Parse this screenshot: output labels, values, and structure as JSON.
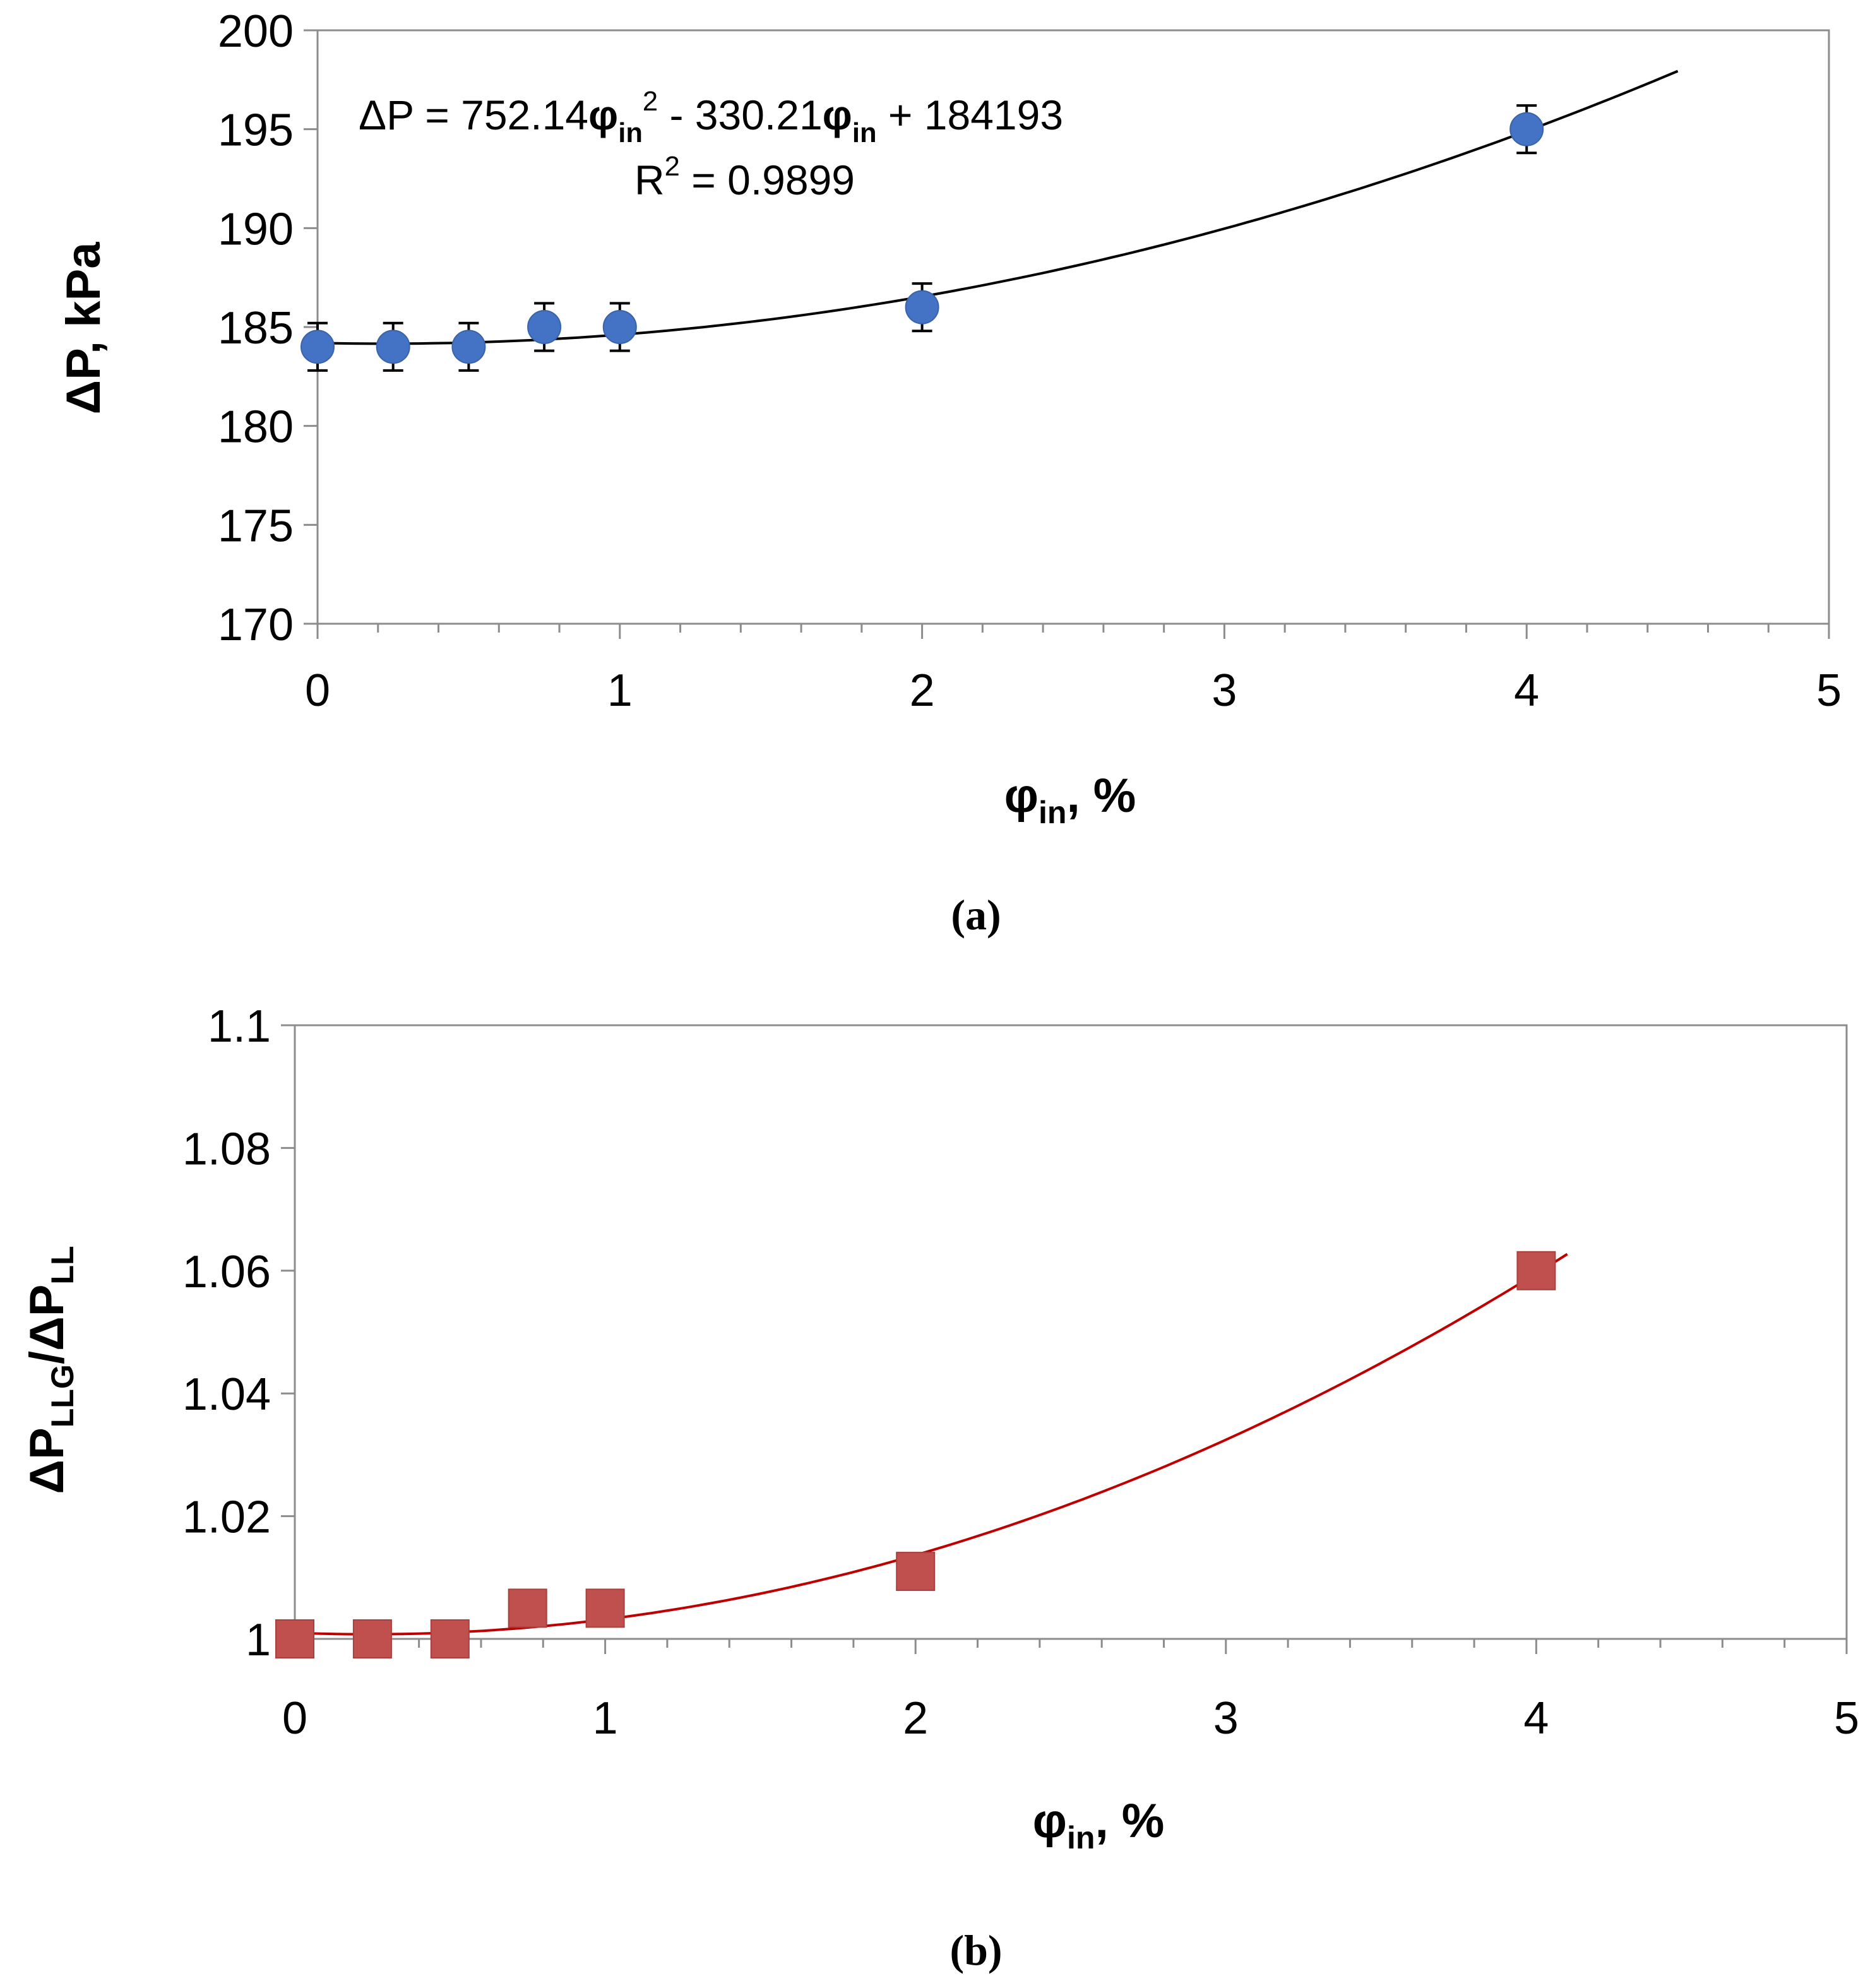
{
  "chart_data": [
    {
      "type": "scatter",
      "caption": "(a)",
      "title": "",
      "xlabel": {
        "main": "φ",
        "sub": "in",
        "tail": ", %"
      },
      "ylabel": "ΔP, kPa",
      "xlim": [
        0,
        5
      ],
      "ylim": [
        170,
        200
      ],
      "x_ticks": [
        "0",
        "1",
        "2",
        "3",
        "4",
        "5"
      ],
      "y_ticks": [
        "170",
        "175",
        "180",
        "185",
        "190",
        "195",
        "200"
      ],
      "grid": false,
      "marker": "circle",
      "color": "#4472c4",
      "error_bar": 1.2,
      "x": [
        0,
        0.25,
        0.5,
        0.75,
        1,
        2,
        4
      ],
      "y": [
        184,
        184,
        184,
        185,
        185,
        186,
        195
      ],
      "trendline": {
        "type": "polynomial",
        "order": 2,
        "x_range": [
          0,
          4.5
        ],
        "color": "#000000"
      },
      "equation": {
        "prefix": "ΔP = 752.14",
        "phi": "φ",
        "sub": "in",
        "sup": "2",
        "mid": " - 330.21",
        "phi2": "φ",
        "sub2": "in",
        "suffix": " + 184193"
      },
      "r2": {
        "prefix": "R",
        "sup": "2",
        "suffix": " = 0.9899"
      }
    },
    {
      "type": "scatter",
      "caption": "(b)",
      "title": "",
      "xlabel": {
        "main": "φ",
        "sub": "in",
        "tail": ", %"
      },
      "ylabel": {
        "a": "ΔP",
        "sub_a": "LLG",
        "b": "/ΔP",
        "sub_b": "LL"
      },
      "xlim": [
        0,
        5
      ],
      "ylim": [
        1,
        1.1
      ],
      "x_ticks": [
        "0",
        "1",
        "2",
        "3",
        "4",
        "5"
      ],
      "y_ticks": [
        "1",
        "1.02",
        "1.04",
        "1.06",
        "1.08",
        "1.1"
      ],
      "grid": false,
      "marker": "square",
      "color": "#c0504d",
      "x": [
        0,
        0.25,
        0.5,
        0.75,
        1,
        2,
        4
      ],
      "y": [
        1.0,
        1.0,
        1.0,
        1.005,
        1.005,
        1.011,
        1.06
      ],
      "trendline": {
        "type": "polynomial",
        "order": 2,
        "x_range": [
          0.03,
          4.1
        ],
        "color": "#c00000"
      }
    }
  ]
}
